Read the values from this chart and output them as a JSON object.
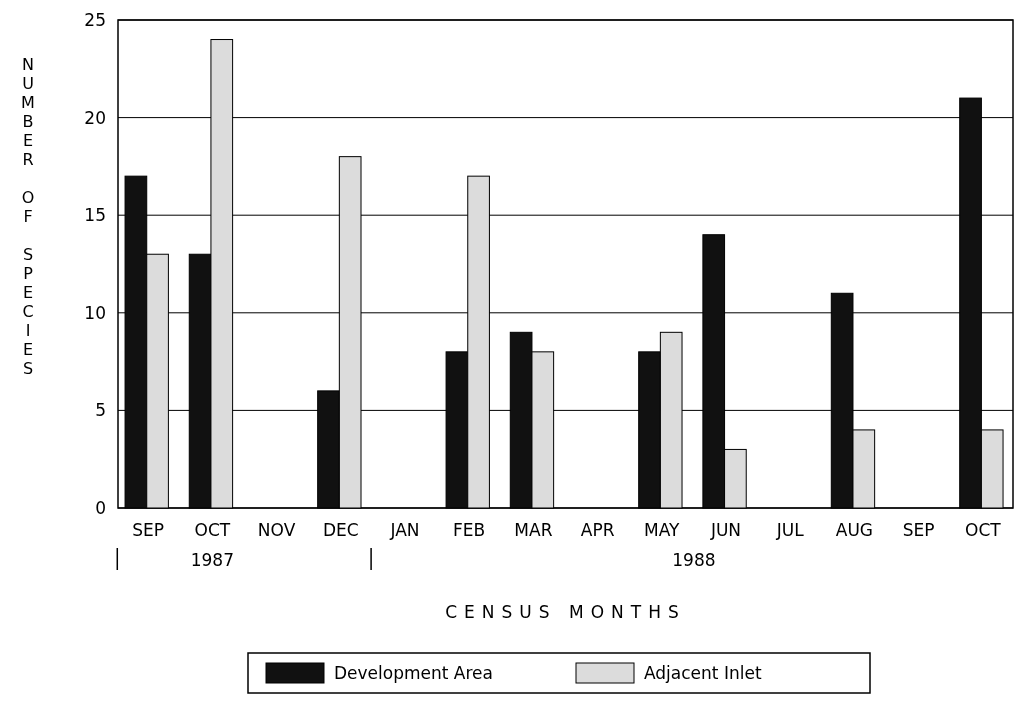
{
  "chart_data": {
    "type": "bar",
    "xlabel": "CENSUS MONTHS",
    "ylabel": "NUMBER OF SPECIES",
    "categories": [
      "SEP",
      "OCT",
      "NOV",
      "DEC",
      "JAN",
      "FEB",
      "MAR",
      "APR",
      "MAY",
      "JUN",
      "JUL",
      "AUG",
      "SEP",
      "OCT"
    ],
    "series": [
      {
        "name": "Development Area",
        "color": "#111111",
        "values": [
          17,
          13,
          null,
          6,
          null,
          8,
          9,
          null,
          8,
          14,
          null,
          11,
          null,
          21
        ]
      },
      {
        "name": "Adjacent Inlet",
        "color": "#dcdcdc",
        "values": [
          13,
          24,
          null,
          18,
          null,
          17,
          8,
          null,
          9,
          3,
          null,
          4,
          null,
          4
        ]
      }
    ],
    "ylim": [
      0,
      25
    ],
    "yticks": [
      0,
      5,
      10,
      15,
      20,
      25
    ],
    "grid": "y",
    "legend": "bottom",
    "annotations": [
      "1987",
      "1988"
    ]
  }
}
